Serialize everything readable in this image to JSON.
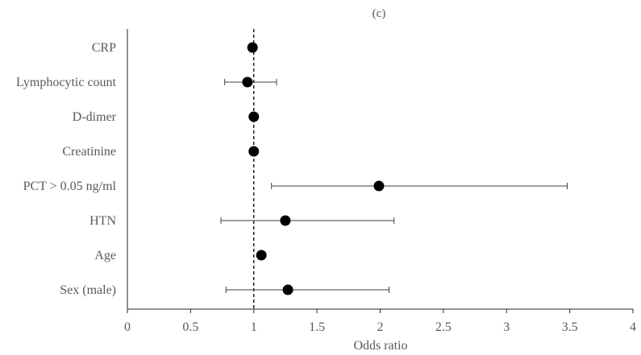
{
  "chart_data": {
    "type": "scatter",
    "subplot_label": "(c)",
    "xlabel": "Odds ratio",
    "xlim": [
      0,
      4
    ],
    "xticks": [
      0,
      0.5,
      1,
      1.5,
      2,
      2.5,
      3,
      3.5,
      4
    ],
    "xtick_labels": [
      "0",
      "0.5",
      "1",
      "1.5",
      "2",
      "2.5",
      "3",
      "3.5",
      "4"
    ],
    "reference_line": 1,
    "grid": false,
    "categories": [
      "CRP",
      "Lymphocytic count",
      "D-dimer",
      "Creatinine",
      "PCT > 0.05 ng/ml",
      "HTN",
      "Age",
      "Sex (male)"
    ],
    "series": [
      {
        "points": [
          {
            "label": "CRP",
            "or": 0.99,
            "ci_low": null,
            "ci_high": null
          },
          {
            "label": "Lymphocytic count",
            "or": 0.95,
            "ci_low": 0.77,
            "ci_high": 1.18
          },
          {
            "label": "D-dimer",
            "or": 1.0,
            "ci_low": null,
            "ci_high": null
          },
          {
            "label": "Creatinine",
            "or": 1.0,
            "ci_low": null,
            "ci_high": null
          },
          {
            "label": "PCT > 0.05 ng/ml",
            "or": 1.99,
            "ci_low": 1.14,
            "ci_high": 3.48
          },
          {
            "label": "HTN",
            "or": 1.25,
            "ci_low": 0.74,
            "ci_high": 2.11
          },
          {
            "label": "Age",
            "or": 1.06,
            "ci_low": null,
            "ci_high": null
          },
          {
            "label": "Sex (male)",
            "or": 1.27,
            "ci_low": 0.78,
            "ci_high": 2.07
          }
        ]
      }
    ],
    "colors": {
      "marker": "#000000",
      "axis": "#262626",
      "text": "#595959",
      "whisker": "#404040"
    }
  }
}
